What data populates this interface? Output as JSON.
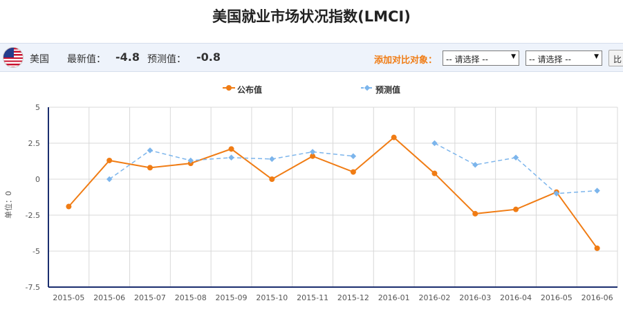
{
  "page": {
    "title": "美国就业市场状况指数(LMCI)"
  },
  "info_bar": {
    "country": "美国",
    "latest_label": "最新值：",
    "latest_value": "-4.8",
    "forecast_label": "预测值：",
    "forecast_value": "-0.8",
    "compare_label": "添加对比对象：",
    "select1": "-- 请选择 --",
    "select2": "-- 请选择 --",
    "button_label": "比"
  },
  "colors": {
    "published": "#f07c14",
    "forecast": "#7cb5ec",
    "axis": "#1a2d6e",
    "grid": "#d8d8d8"
  },
  "chart_data": {
    "type": "line",
    "ylabel": "单位：0",
    "ylim": [
      -7.5,
      5
    ],
    "yticks": [
      "5",
      "2.5",
      "0",
      "-2.5",
      "-5",
      "-7.5"
    ],
    "ytick_values": [
      5,
      2.5,
      0,
      -2.5,
      -5,
      -7.5
    ],
    "categories": [
      "2015-05",
      "2015-06",
      "2015-07",
      "2015-08",
      "2015-09",
      "2015-10",
      "2015-11",
      "2015-12",
      "2016-01",
      "2016-02",
      "2016-03",
      "2016-04",
      "2016-05",
      "2016-06"
    ],
    "grid": true,
    "legend_position": "top-center",
    "series": [
      {
        "name": "公布值",
        "values": [
          -1.9,
          1.3,
          0.8,
          1.1,
          2.1,
          0.0,
          1.6,
          0.5,
          2.9,
          0.4,
          -2.4,
          -2.1,
          -0.9,
          -4.8
        ]
      },
      {
        "name": "预测值",
        "values": [
          null,
          0.0,
          2.0,
          1.3,
          1.5,
          1.4,
          1.9,
          1.6,
          null,
          2.5,
          1.0,
          1.5,
          -1.0,
          -0.8
        ]
      }
    ]
  }
}
